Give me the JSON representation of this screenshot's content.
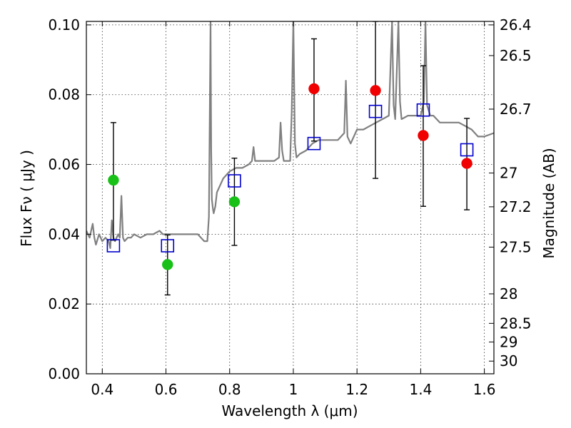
{
  "chart_data": {
    "type": "scatter",
    "xlabel": "Wavelength  λ (μm)",
    "ylabel_left": "Flux  Fν  ( μJy )",
    "ylabel_right": "Magnitude (AB)",
    "xlim": [
      0.35,
      1.63
    ],
    "ylim": [
      0.0,
      0.101
    ],
    "grid": true,
    "x_ticks": [
      0.4,
      0.6,
      0.8,
      1.0,
      1.2,
      1.4,
      1.6
    ],
    "x_tick_labels": [
      "0.4",
      "0.6",
      "0.8",
      "1",
      "1.2",
      "1.4",
      "1.6"
    ],
    "y_ticks": [
      0.0,
      0.02,
      0.04,
      0.06,
      0.08,
      0.1
    ],
    "y_tick_labels": [
      "0.00",
      "0.02",
      "0.04",
      "0.06",
      "0.08",
      "0.10"
    ],
    "mag_ticks": [
      "26.4",
      "26.5",
      "26.7",
      "27",
      "27.2",
      "27.5",
      "28",
      "28.5",
      "29",
      "30"
    ],
    "series": [
      {
        "name": "spectrum",
        "style": "line",
        "color": "#808080",
        "x": [
          0.35,
          0.36,
          0.37,
          0.375,
          0.38,
          0.39,
          0.4,
          0.41,
          0.42,
          0.425,
          0.43,
          0.435,
          0.44,
          0.45,
          0.455,
          0.46,
          0.465,
          0.47,
          0.48,
          0.49,
          0.5,
          0.52,
          0.54,
          0.56,
          0.58,
          0.59,
          0.6,
          0.62,
          0.64,
          0.66,
          0.68,
          0.7,
          0.71,
          0.72,
          0.73,
          0.735,
          0.74,
          0.742,
          0.744,
          0.748,
          0.75,
          0.755,
          0.76,
          0.78,
          0.8,
          0.82,
          0.84,
          0.86,
          0.87,
          0.875,
          0.88,
          0.885,
          0.89,
          0.9,
          0.92,
          0.94,
          0.955,
          0.96,
          0.965,
          0.97,
          0.98,
          0.99,
          0.995,
          1.0,
          1.005,
          1.01,
          1.02,
          1.04,
          1.06,
          1.08,
          1.1,
          1.12,
          1.14,
          1.16,
          1.165,
          1.17,
          1.175,
          1.18,
          1.2,
          1.22,
          1.24,
          1.26,
          1.28,
          1.3,
          1.31,
          1.315,
          1.32,
          1.33,
          1.335,
          1.34,
          1.36,
          1.38,
          1.4,
          1.41,
          1.415,
          1.42,
          1.43,
          1.44,
          1.46,
          1.48,
          1.5,
          1.52,
          1.54,
          1.56,
          1.58,
          1.6,
          1.63
        ],
        "y": [
          0.041,
          0.039,
          0.043,
          0.039,
          0.037,
          0.04,
          0.038,
          0.039,
          0.038,
          0.036,
          0.044,
          0.039,
          0.038,
          0.04,
          0.039,
          0.051,
          0.039,
          0.038,
          0.039,
          0.039,
          0.04,
          0.039,
          0.04,
          0.04,
          0.041,
          0.04,
          0.04,
          0.04,
          0.04,
          0.04,
          0.04,
          0.04,
          0.039,
          0.038,
          0.038,
          0.045,
          0.101,
          0.064,
          0.05,
          0.047,
          0.046,
          0.048,
          0.052,
          0.056,
          0.058,
          0.059,
          0.059,
          0.06,
          0.061,
          0.065,
          0.061,
          0.061,
          0.061,
          0.061,
          0.061,
          0.061,
          0.062,
          0.072,
          0.064,
          0.061,
          0.061,
          0.061,
          0.075,
          0.101,
          0.066,
          0.062,
          0.063,
          0.064,
          0.066,
          0.067,
          0.067,
          0.067,
          0.067,
          0.069,
          0.084,
          0.068,
          0.067,
          0.066,
          0.07,
          0.07,
          0.071,
          0.072,
          0.073,
          0.074,
          0.101,
          0.077,
          0.073,
          0.101,
          0.078,
          0.073,
          0.074,
          0.074,
          0.074,
          0.078,
          0.101,
          0.077,
          0.074,
          0.074,
          0.072,
          0.072,
          0.072,
          0.072,
          0.071,
          0.07,
          0.068,
          0.068,
          0.069
        ]
      },
      {
        "name": "photometry_green",
        "style": "circle",
        "color": "#18c018",
        "x": [
          0.435,
          0.605,
          0.815
        ],
        "y": [
          0.0555,
          0.0313,
          0.0493
        ]
      },
      {
        "name": "photometry_red",
        "style": "circle",
        "color": "#f00000",
        "x": [
          1.065,
          1.258,
          1.408,
          1.545
        ],
        "y": [
          0.0817,
          0.0812,
          0.0683,
          0.0603
        ]
      },
      {
        "name": "model_squares",
        "style": "open-square",
        "color": "#0000cc",
        "x": [
          0.435,
          0.605,
          0.815,
          1.065,
          1.258,
          1.408,
          1.545
        ],
        "y": [
          0.0367,
          0.0367,
          0.0553,
          0.066,
          0.0752,
          0.0756,
          0.0642
        ]
      },
      {
        "name": "error_bars",
        "style": "errorbar",
        "color": "#000000",
        "x": [
          0.435,
          0.605,
          0.815,
          1.065,
          1.258,
          1.408,
          1.545
        ],
        "low": [
          0.0383,
          0.0226,
          0.0368,
          0.0667,
          0.056,
          0.048,
          0.047
        ],
        "high": [
          0.072,
          0.0398,
          0.0618,
          0.096,
          0.101,
          0.0883,
          0.0732
        ]
      }
    ]
  }
}
